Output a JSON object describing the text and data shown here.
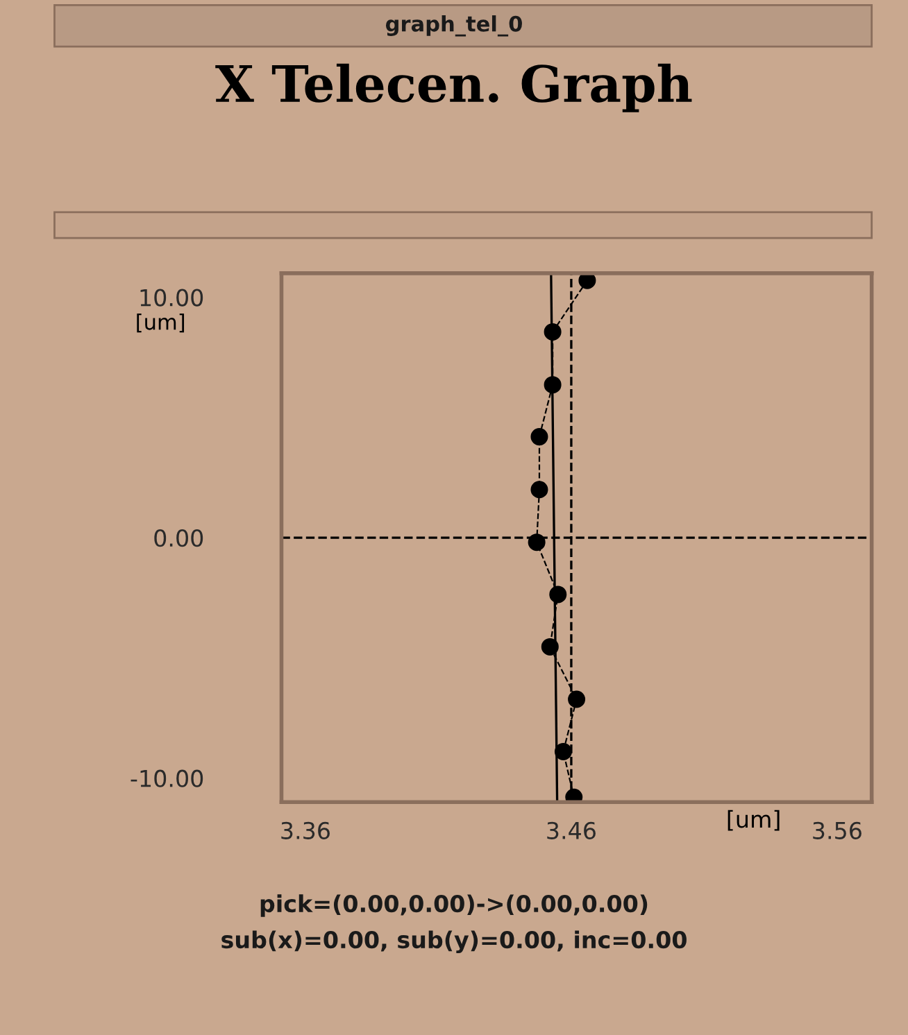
{
  "chart_data": {
    "type": "line",
    "title": "X Telecen. Graph",
    "subtitle": "graph_tel_0",
    "xlabel": "[um]",
    "ylabel": "[um]",
    "series": [
      {
        "color": "#000000",
        "marker": "circle",
        "line_style": "dashed",
        "x": [
          3.466,
          3.453,
          3.453,
          3.448,
          3.448,
          3.447,
          3.455,
          3.452,
          3.462,
          3.457,
          3.461
        ],
        "values": [
          10.7,
          8.56,
          6.36,
          4.2,
          2.0,
          -0.19,
          -2.36,
          -4.54,
          -6.72,
          -8.9,
          -10.8
        ]
      },
      {
        "color": "#000000",
        "marker": "none",
        "line_style": "solid",
        "x": [
          3.4524,
          3.4547
        ],
        "values": [
          11,
          -11
        ]
      }
    ],
    "ref_lines": [
      {
        "axis": "x",
        "value": 3.46,
        "line_style": "dashed",
        "color": "#000000"
      },
      {
        "axis": "y",
        "value": 0,
        "line_style": "dashed",
        "color": "#000000"
      }
    ],
    "xlim": [
      3.351,
      3.573
    ],
    "ylim": [
      -11,
      11
    ],
    "xticks": [
      {
        "value": 3.36,
        "label": "3.36"
      },
      {
        "value": 3.46,
        "label": "3.46"
      },
      {
        "value": 3.56,
        "label": "3.56"
      }
    ],
    "yticks": [
      {
        "value": -10,
        "label": "-10.00"
      },
      {
        "value": 0,
        "label": "0.00"
      },
      {
        "value": 10,
        "label": "10.00"
      }
    ],
    "grid": false,
    "legend": false,
    "annotations": [
      "pick=(0.00,0.00)->(0.00,0.00)",
      "sub(x)=0.00, sub(y)=0.00, inc=0.00"
    ]
  }
}
